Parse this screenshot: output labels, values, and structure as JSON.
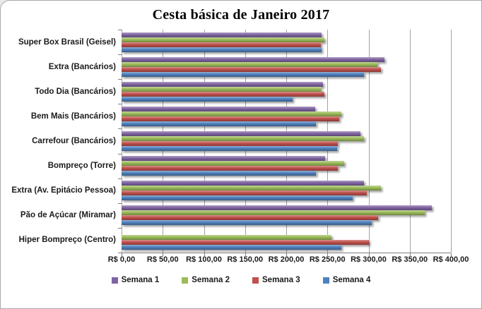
{
  "chart_data": {
    "type": "bar",
    "orientation": "horizontal",
    "title": "Cesta básica de Janeiro 2017",
    "categories": [
      "Super Box Brasil (Geisel)",
      "Extra (Bancários)",
      "Todo Dia (Bancários)",
      "Bem Mais (Bancários)",
      "Carrefour (Bancários)",
      "Bompreço (Torre)",
      "Extra (Av. Epitácio Pessoa)",
      "Pão de Açúcar (Miramar)",
      "Hiper Bompreço (Centro)"
    ],
    "series": [
      {
        "name": "Semana 1",
        "color": "#8064A2",
        "values": [
          243,
          319,
          245,
          235,
          290,
          247,
          294,
          377,
          0
        ]
      },
      {
        "name": "Semana 2",
        "color": "#9BBB59",
        "values": [
          246,
          311,
          242,
          267,
          294,
          270,
          315,
          368,
          255
        ]
      },
      {
        "name": "Semana 3",
        "color": "#C0504D",
        "values": [
          242,
          315,
          246,
          264,
          263,
          263,
          298,
          312,
          300
        ]
      },
      {
        "name": "Semana 4",
        "color": "#4F81BD",
        "values": [
          243,
          294,
          208,
          236,
          262,
          236,
          281,
          304,
          267
        ]
      }
    ],
    "x_ticks": [
      "R$ 0,00",
      "R$ 50,00",
      "R$ 100,00",
      "R$ 150,00",
      "R$ 200,00",
      "R$ 250,00",
      "R$ 300,00",
      "R$ 350,00",
      "R$ 400,00"
    ],
    "xlim": [
      0,
      400
    ],
    "grid": true,
    "legend_position": "bottom",
    "gridline_color": "#A3A3A3",
    "axis_color": "#7F7F7F"
  }
}
